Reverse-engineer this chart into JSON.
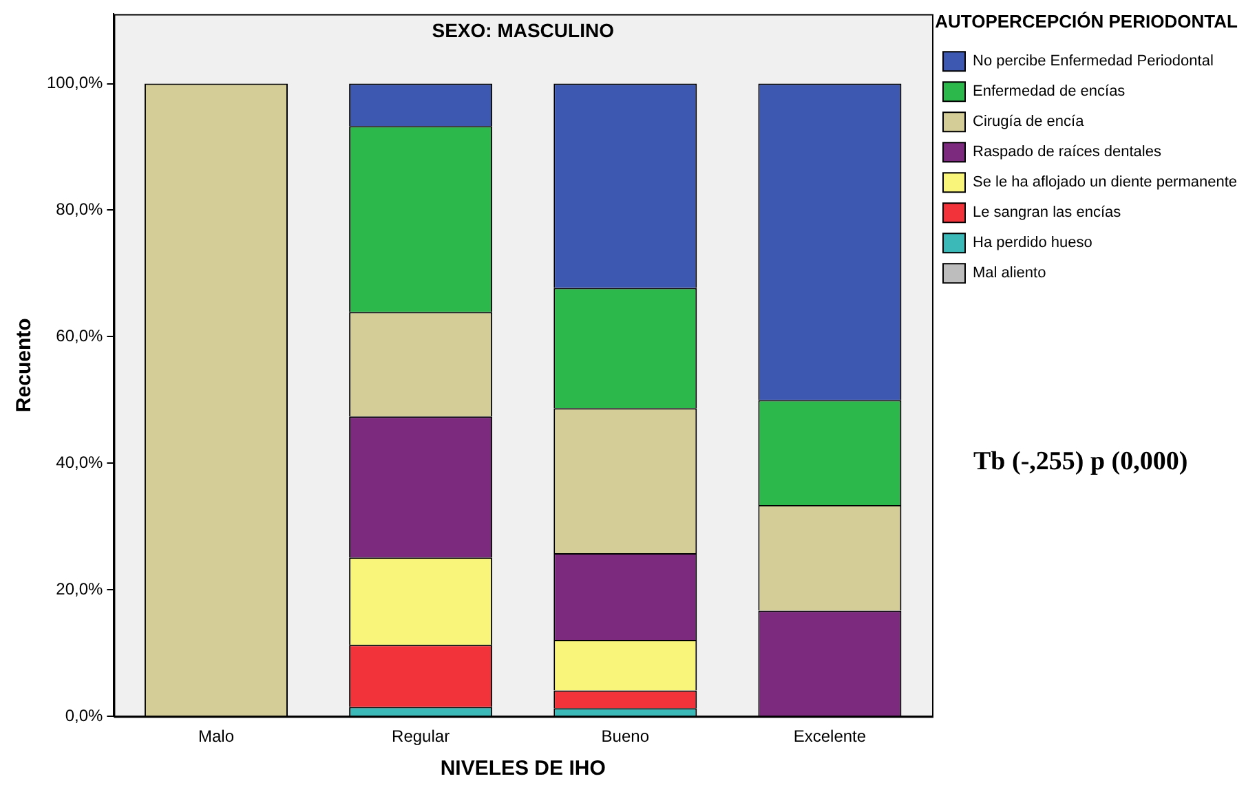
{
  "chart_data": {
    "type": "bar",
    "stacked": true,
    "title": "SEXO: MASCULINO",
    "xlabel": "NIVELES DE IHO",
    "ylabel": "Recuento",
    "legend_title": "AUTOPERCEPCIÓN PERIODONTAL",
    "legend": "right",
    "categories": [
      "Malo",
      "Regular",
      "Bueno",
      "Excelente"
    ],
    "series": [
      {
        "name": "Mal aliento",
        "color": "#bdbdbd",
        "values": [
          null,
          null,
          null,
          null
        ]
      },
      {
        "name": "Ha perdido hueso",
        "color": "#3bb8b8",
        "values": [
          null,
          1.5,
          1.3,
          null
        ]
      },
      {
        "name": "Le sangran las encías",
        "color": "#f2333a",
        "values": [
          null,
          9.8,
          2.8,
          null
        ]
      },
      {
        "name": "Se le ha aflojado un diente permanente",
        "color": "#f9f57a",
        "values": [
          null,
          13.8,
          8.0,
          null
        ]
      },
      {
        "name": "Raspado de raíces dentales",
        "color": "#7b2a7e",
        "values": [
          null,
          22.3,
          13.7,
          16.7
        ]
      },
      {
        "name": "Cirugía de encía",
        "color": "#d5cd97",
        "values": [
          100,
          16.5,
          22.9,
          16.7
        ]
      },
      {
        "name": "Enfermedad de encías",
        "color": "#2db84b",
        "values": [
          null,
          29.4,
          19.0,
          16.6
        ]
      },
      {
        "name": "No percibe Enfermedad Periodontal",
        "color": "#3c58b0",
        "values": [
          null,
          6.7,
          32.3,
          50
        ]
      }
    ],
    "ylim": [
      0,
      111
    ],
    "yticks": [
      {
        "value": 0,
        "label": "0,0%"
      },
      {
        "value": 20,
        "label": "20,0%"
      },
      {
        "value": 40,
        "label": "40,0%"
      },
      {
        "value": 60,
        "label": "60,0%"
      },
      {
        "value": 80,
        "label": "80,0%"
      },
      {
        "value": 100,
        "label": "100,0%"
      }
    ],
    "grid": false,
    "annotations": [
      "Tb (-,255) p (0,000)"
    ]
  }
}
